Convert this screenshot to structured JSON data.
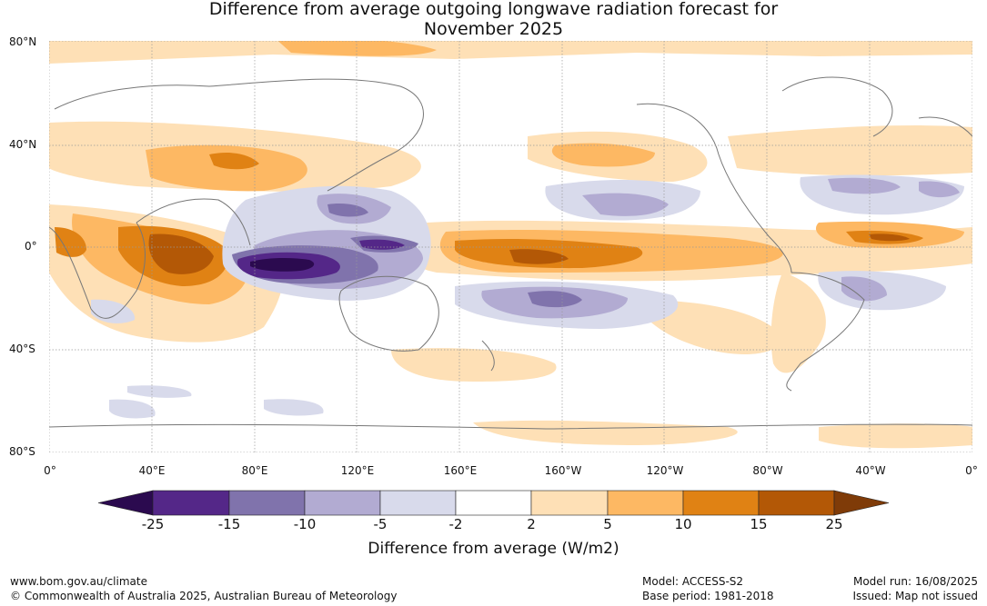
{
  "title": {
    "line1": "Difference from average outgoing longwave radiation forecast for",
    "line2": "November 2025"
  },
  "map": {
    "projection": "equirectangular",
    "central_longitude": 180,
    "lat_range": [
      -80,
      80
    ],
    "lat_labels": [
      "80°N",
      "40°N",
      "0°",
      "40°S",
      "80°S"
    ],
    "lon_labels": [
      "0°",
      "40°E",
      "80°E",
      "120°E",
      "160°E",
      "160°W",
      "120°W",
      "80°W",
      "40°W",
      "0°"
    ],
    "gridlines": true,
    "ocean_color": "#ffffff",
    "coastline_color": "#777777"
  },
  "colorbar": {
    "label": "Difference from average (W/m2)",
    "tick_labels": [
      "-25",
      "-15",
      "-10",
      "-5",
      "-2",
      "2",
      "5",
      "10",
      "15",
      "25"
    ],
    "min_color": "#2b0a4f",
    "max_color": "#7f3b08",
    "colors": [
      "#542788",
      "#8073ac",
      "#b2abd2",
      "#d8daeb",
      "#ffffff",
      "#fee0b6",
      "#fdb863",
      "#e08214",
      "#b35806"
    ]
  },
  "footer": {
    "url": "www.bom.gov.au/climate",
    "copyright": "© Commonwealth of Australia 2025, Australian Bureau of Meteorology",
    "model": "Model: ACCESS-S2",
    "base_period": "Base period: 1981-2018",
    "model_run": "Model run: 16/08/2025",
    "issued": "Issued: Map not issued"
  }
}
